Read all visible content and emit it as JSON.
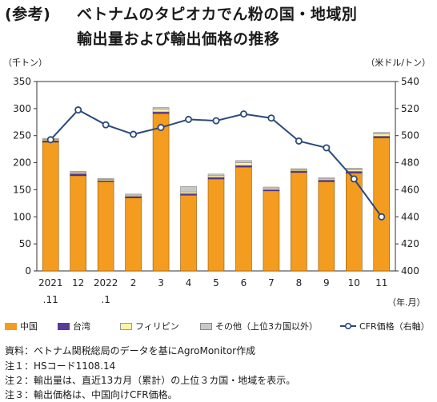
{
  "title": {
    "prefix": "(参考)",
    "line1": "ベトナムのタピオカでん粉の国・地域別",
    "line2": "輸出量および輸出価格の推移"
  },
  "units": {
    "left": "（千トン）",
    "right": "（米ドル/トン）",
    "x": "（年.月）"
  },
  "colors": {
    "china": "#f39c1f",
    "taiwan": "#5b3a9b",
    "philippines": "#fff3a8",
    "others": "#c8c8c8",
    "cfr": "#2b4a7a"
  },
  "chart_data": {
    "type": "bar",
    "stacked": true,
    "categories": [
      [
        "2021",
        ".11"
      ],
      [
        "12",
        ""
      ],
      [
        "2022",
        ".1"
      ],
      [
        "2",
        ""
      ],
      [
        "3",
        ""
      ],
      [
        "4",
        ""
      ],
      [
        "5",
        ""
      ],
      [
        "6",
        ""
      ],
      [
        "7",
        ""
      ],
      [
        "8",
        ""
      ],
      [
        "9",
        ""
      ],
      [
        "10",
        ""
      ],
      [
        "11",
        ""
      ]
    ],
    "ylim": [
      0,
      350
    ],
    "yticks": [
      "0",
      "50",
      "100",
      "150",
      "200",
      "250",
      "300",
      "350"
    ],
    "y2lim": [
      400,
      540
    ],
    "y2ticks": [
      "400",
      "420",
      "440",
      "460",
      "480",
      "500",
      "520",
      "540"
    ],
    "series": [
      {
        "name": "中国",
        "values": [
          238,
          176,
          165,
          135,
          291,
          140,
          170,
          192,
          148,
          182,
          165,
          181,
          246
        ]
      },
      {
        "name": "台湾",
        "values": [
          3,
          4,
          2,
          3,
          3,
          3,
          3,
          3,
          2,
          3,
          3,
          3,
          3
        ]
      },
      {
        "name": "フィリピン",
        "values": [
          2,
          2,
          2,
          2,
          5,
          3,
          3,
          5,
          2,
          2,
          2,
          3,
          4
        ]
      },
      {
        "name": "その他（上位3カ国以外）",
        "values": [
          2,
          2,
          2,
          2,
          3,
          10,
          3,
          4,
          3,
          2,
          2,
          3,
          3
        ]
      }
    ],
    "line": {
      "name": "CFR価格（右軸）",
      "axis": "right",
      "values": [
        497,
        519,
        508,
        501,
        506,
        512,
        511,
        516,
        513,
        496,
        491,
        468,
        440
      ]
    },
    "legend_position": "bottom"
  },
  "notes": {
    "source": "資料：ベトナム関税総局のデータを基にAgroMonitor作成",
    "note1": "注１：HSコード1108.14",
    "note2": "注２：輸出量は、直近13カ月（累計）の上位３カ国・地域を表示。",
    "note3": "注３：輸出価格は、中国向けCFR価格。"
  }
}
